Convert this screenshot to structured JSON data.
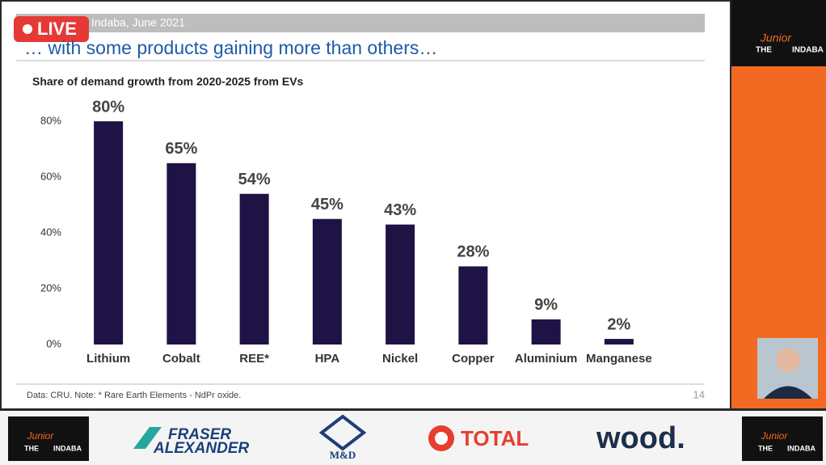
{
  "live_badge": "LIVE",
  "header": {
    "event": "Indaba, June 2021",
    "title": "… with some products gaining more than others…"
  },
  "chart_data": {
    "type": "bar",
    "title": "Share of demand growth from 2020-2025 from EVs",
    "categories": [
      "Lithium",
      "Cobalt",
      "REE*",
      "HPA",
      "Nickel",
      "Copper",
      "Aluminium",
      "Manganese"
    ],
    "values": [
      80,
      65,
      54,
      45,
      43,
      28,
      9,
      2
    ],
    "value_labels": [
      "80%",
      "65%",
      "54%",
      "45%",
      "43%",
      "28%",
      "9%",
      "2%"
    ],
    "color": "#1f1245",
    "ylim": [
      0,
      80
    ],
    "yticks": [
      {
        "value": 0,
        "label": "0%"
      },
      {
        "value": 20,
        "label": "20%"
      },
      {
        "value": 40,
        "label": "40%"
      },
      {
        "value": 60,
        "label": "60%"
      },
      {
        "value": 80,
        "label": "80%"
      }
    ],
    "grid": false
  },
  "footer": {
    "note": "Data: CRU. Note: * Rare Earth Elements - NdPr oxide.",
    "page": "14"
  },
  "logos": {
    "junior": {
      "script": "Junior",
      "the": "THE",
      "indaba": "INDABA"
    },
    "fraser": [
      "FRASER",
      "ALEXANDER"
    ],
    "md": "M&D",
    "total": "TOTAL",
    "wood": "wood."
  }
}
